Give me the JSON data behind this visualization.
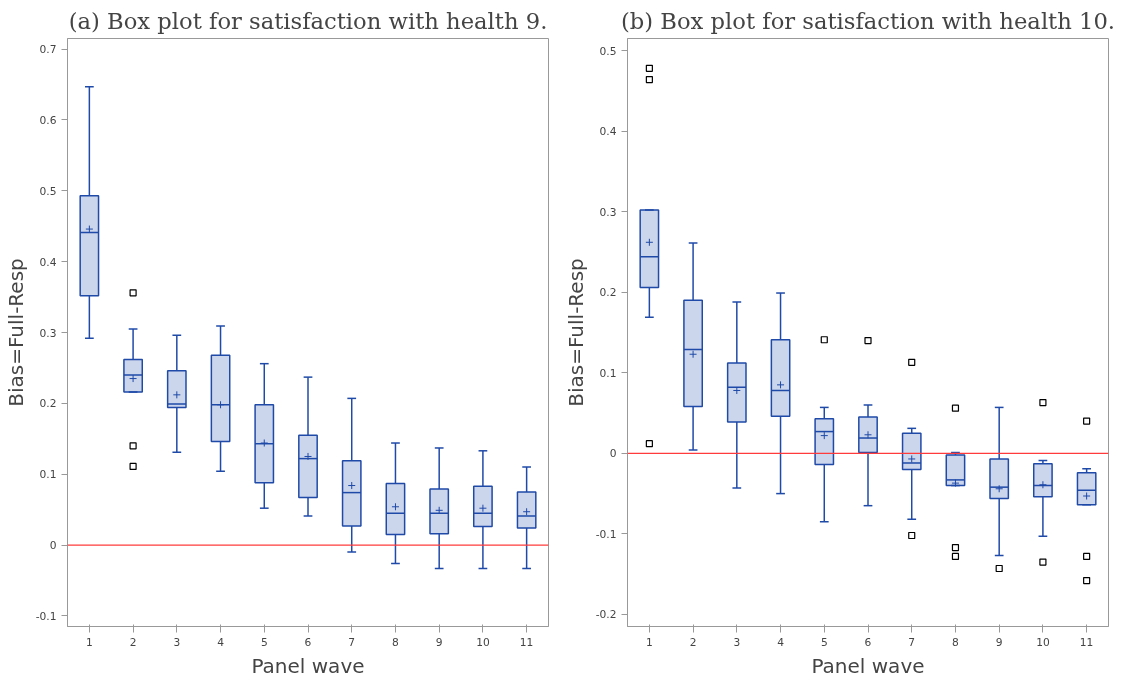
{
  "chart_data": [
    {
      "type": "box",
      "title": "(a) Box plot for satisfaction with health 9.",
      "xlabel": "Panel wave",
      "ylabel": "Bias=Full-Resp",
      "categories": [
        "1",
        "2",
        "3",
        "4",
        "5",
        "6",
        "7",
        "8",
        "9",
        "10",
        "11"
      ],
      "ylim": [
        -0.115,
        0.715
      ],
      "yticks": [
        -0.1,
        0,
        0.1,
        0.2,
        0.3,
        0.4,
        0.5,
        0.6,
        0.7
      ],
      "grid": false,
      "marker": "square",
      "ref_lines": [
        {
          "axis": "y",
          "value": 0,
          "color": "#ff3b3b"
        }
      ],
      "series": [
        {
          "color": "#1f4aa8",
          "boxes": [
            {
              "low": 0.292,
              "q1": 0.352,
              "median": 0.441,
              "q3": 0.493,
              "high": 0.647,
              "mean": 0.446
            },
            {
              "low": 0.216,
              "q1": 0.216,
              "median": 0.24,
              "q3": 0.262,
              "high": 0.305,
              "mean": 0.235,
              "outliers": [
                0.356,
                0.14,
                0.111
              ]
            },
            {
              "low": 0.131,
              "q1": 0.194,
              "median": 0.199,
              "q3": 0.246,
              "high": 0.296,
              "mean": 0.212
            },
            {
              "low": 0.104,
              "q1": 0.146,
              "median": 0.198,
              "q3": 0.268,
              "high": 0.309,
              "mean": 0.198
            },
            {
              "low": 0.052,
              "q1": 0.088,
              "median": 0.143,
              "q3": 0.198,
              "high": 0.256,
              "mean": 0.144
            },
            {
              "low": 0.041,
              "q1": 0.067,
              "median": 0.122,
              "q3": 0.155,
              "high": 0.237,
              "mean": 0.125
            },
            {
              "low": -0.01,
              "q1": 0.027,
              "median": 0.074,
              "q3": 0.119,
              "high": 0.207,
              "mean": 0.084
            },
            {
              "low": -0.026,
              "q1": 0.015,
              "median": 0.045,
              "q3": 0.087,
              "high": 0.144,
              "mean": 0.054
            },
            {
              "low": -0.033,
              "q1": 0.016,
              "median": 0.045,
              "q3": 0.079,
              "high": 0.137,
              "mean": 0.049
            },
            {
              "low": -0.033,
              "q1": 0.026,
              "median": 0.045,
              "q3": 0.083,
              "high": 0.133,
              "mean": 0.052
            },
            {
              "low": -0.033,
              "q1": 0.024,
              "median": 0.041,
              "q3": 0.075,
              "high": 0.11,
              "mean": 0.047
            }
          ]
        }
      ]
    },
    {
      "type": "box",
      "title": "(b) Box plot for satisfaction with health 10.",
      "xlabel": "Panel wave",
      "ylabel": "Bias=Full-Resp",
      "categories": [
        "1",
        "2",
        "3",
        "4",
        "5",
        "6",
        "7",
        "8",
        "9",
        "10",
        "11"
      ],
      "ylim": [
        -0.215,
        0.515
      ],
      "yticks": [
        -0.2,
        -0.1,
        0,
        0.1,
        0.2,
        0.3,
        0.4,
        0.5
      ],
      "grid": false,
      "marker": "square",
      "ref_lines": [
        {
          "axis": "y",
          "value": 0,
          "color": "#ff3b3b"
        }
      ],
      "series": [
        {
          "color": "#1f4aa8",
          "boxes": [
            {
              "low": 0.169,
              "q1": 0.206,
              "median": 0.244,
              "q3": 0.302,
              "high": 0.302,
              "mean": 0.262,
              "outliers": [
                0.478,
                0.464,
                0.012
              ]
            },
            {
              "low": 0.004,
              "q1": 0.058,
              "median": 0.129,
              "q3": 0.19,
              "high": 0.261,
              "mean": 0.123
            },
            {
              "low": -0.043,
              "q1": 0.039,
              "median": 0.082,
              "q3": 0.112,
              "high": 0.188,
              "mean": 0.078
            },
            {
              "low": -0.05,
              "q1": 0.046,
              "median": 0.078,
              "q3": 0.141,
              "high": 0.199,
              "mean": 0.085
            },
            {
              "low": -0.085,
              "q1": -0.014,
              "median": 0.027,
              "q3": 0.043,
              "high": 0.057,
              "mean": 0.022,
              "outliers": [
                0.141
              ]
            },
            {
              "low": -0.065,
              "q1": 0.001,
              "median": 0.019,
              "q3": 0.045,
              "high": 0.06,
              "mean": 0.023,
              "outliers": [
                0.14
              ]
            },
            {
              "low": -0.082,
              "q1": -0.02,
              "median": -0.012,
              "q3": 0.025,
              "high": 0.031,
              "mean": -0.007,
              "outliers": [
                0.113,
                -0.102
              ]
            },
            {
              "low": -0.04,
              "q1": -0.04,
              "median": -0.033,
              "q3": -0.002,
              "high": 0.001,
              "mean": -0.037,
              "outliers": [
                0.056,
                -0.117,
                -0.128
              ]
            },
            {
              "low": -0.127,
              "q1": -0.056,
              "median": -0.042,
              "q3": -0.007,
              "high": 0.057,
              "mean": -0.044,
              "outliers": [
                -0.143
              ]
            },
            {
              "low": -0.103,
              "q1": -0.054,
              "median": -0.04,
              "q3": -0.013,
              "high": -0.009,
              "mean": -0.039,
              "outliers": [
                0.063,
                -0.135
              ]
            },
            {
              "low": -0.064,
              "q1": -0.064,
              "median": -0.046,
              "q3": -0.024,
              "high": -0.019,
              "mean": -0.053,
              "outliers": [
                0.04,
                -0.128,
                -0.158
              ]
            }
          ]
        }
      ]
    }
  ]
}
